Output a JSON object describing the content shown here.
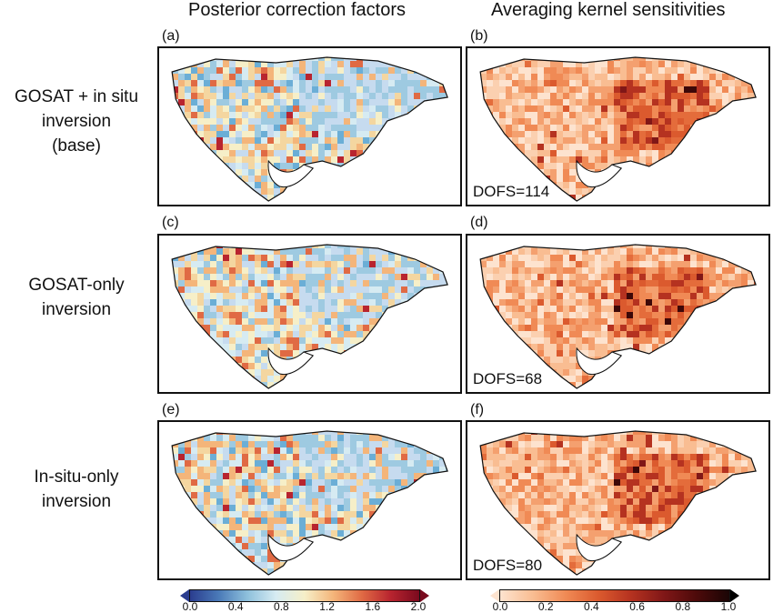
{
  "column_titles": {
    "left": "Posterior correction factors",
    "right": "Averaging kernel sensitivities"
  },
  "rows": [
    {
      "label_lines": [
        "GOSAT + in situ",
        "inversion",
        "(base)"
      ],
      "left_letter": "(a)",
      "right_letter": "(b)",
      "dofs": "DOFS=114"
    },
    {
      "label_lines": [
        "GOSAT-only",
        "inversion"
      ],
      "left_letter": "(c)",
      "right_letter": "(d)",
      "dofs": "DOFS=68"
    },
    {
      "label_lines": [
        "In-situ-only",
        "inversion"
      ],
      "left_letter": "(e)",
      "right_letter": "(f)",
      "dofs": "DOFS=80"
    }
  ],
  "colorbars": {
    "left": {
      "ticks": [
        "0.0",
        "0.4",
        "0.8",
        "1.2",
        "1.6",
        "2.0"
      ],
      "colors": [
        "#2b3d8f",
        "#4a7ab8",
        "#8ec0dc",
        "#d6ebf2",
        "#f6efc8",
        "#f4b57a",
        "#e06a44",
        "#b8242f",
        "#7a0a1e"
      ]
    },
    "right": {
      "ticks": [
        "0.0",
        "0.2",
        "0.4",
        "0.6",
        "0.8",
        "1.0"
      ],
      "colors": [
        "#fde3cf",
        "#f9bd92",
        "#f08a55",
        "#db5a2e",
        "#b53220",
        "#801717",
        "#4d0a0a",
        "#1a0505"
      ]
    }
  }
}
